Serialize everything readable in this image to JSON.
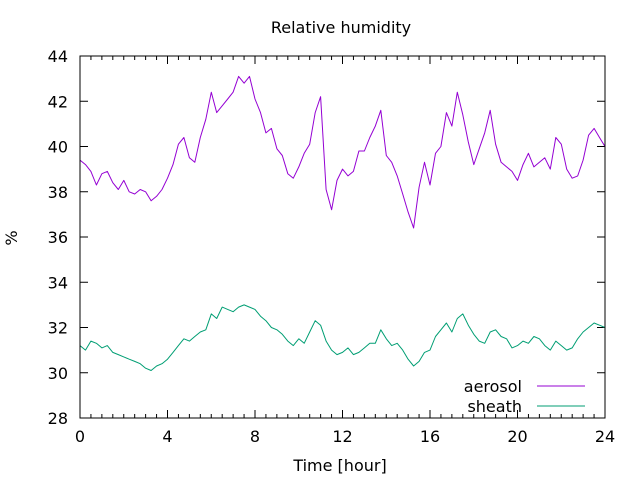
{
  "chart_data": {
    "type": "line",
    "title": "Relative humidity",
    "xlabel": "Time [hour]",
    "ylabel": "%",
    "xlim": [
      0,
      24
    ],
    "ylim": [
      28,
      44
    ],
    "x_ticks": [
      0,
      4,
      8,
      12,
      16,
      20,
      24
    ],
    "y_ticks": [
      28,
      30,
      32,
      34,
      36,
      38,
      40,
      42,
      44
    ],
    "legend_position": "bottom-right",
    "grid": false,
    "series": [
      {
        "name": "aerosol",
        "color": "#9400d3",
        "x": [
          0,
          0.25,
          0.5,
          0.75,
          1,
          1.25,
          1.5,
          1.75,
          2,
          2.25,
          2.5,
          2.75,
          3,
          3.25,
          3.5,
          3.75,
          4,
          4.25,
          4.5,
          4.75,
          5,
          5.25,
          5.5,
          5.75,
          6,
          6.25,
          6.5,
          6.75,
          7,
          7.25,
          7.5,
          7.75,
          8,
          8.25,
          8.5,
          8.75,
          9,
          9.25,
          9.5,
          9.75,
          10,
          10.25,
          10.5,
          10.75,
          11,
          11.25,
          11.5,
          11.75,
          12,
          12.25,
          12.5,
          12.75,
          13,
          13.25,
          13.5,
          13.75,
          14,
          14.25,
          14.5,
          14.75,
          15,
          15.25,
          15.5,
          15.75,
          16,
          16.25,
          16.5,
          16.75,
          17,
          17.25,
          17.5,
          17.75,
          18,
          18.25,
          18.5,
          18.75,
          19,
          19.25,
          19.5,
          19.75,
          20,
          20.25,
          20.5,
          20.75,
          21,
          21.25,
          21.5,
          21.75,
          22,
          22.25,
          22.5,
          22.75,
          23,
          23.25,
          23.5,
          23.75,
          24
        ],
        "values": [
          39.4,
          39.2,
          38.9,
          38.3,
          38.8,
          38.9,
          38.4,
          38.1,
          38.5,
          38.0,
          37.9,
          38.1,
          38.0,
          37.6,
          37.8,
          38.1,
          38.6,
          39.2,
          40.1,
          40.4,
          39.5,
          39.3,
          40.4,
          41.2,
          42.4,
          41.5,
          41.8,
          42.1,
          42.4,
          43.1,
          42.8,
          43.1,
          42.1,
          41.5,
          40.6,
          40.8,
          39.9,
          39.6,
          38.8,
          38.6,
          39.1,
          39.7,
          40.1,
          41.5,
          42.2,
          38.1,
          37.2,
          38.5,
          39.0,
          38.7,
          38.9,
          39.8,
          39.8,
          40.4,
          40.9,
          41.6,
          39.6,
          39.3,
          38.7,
          37.9,
          37.1,
          36.4,
          38.2,
          39.3,
          38.3,
          39.7,
          40.0,
          41.5,
          40.9,
          42.4,
          41.4,
          40.2,
          39.2,
          39.9,
          40.6,
          41.6,
          40.1,
          39.3,
          39.1,
          38.9,
          38.5,
          39.2,
          39.7,
          39.1,
          39.3,
          39.5,
          39.0,
          40.4,
          40.1,
          39.0,
          38.6,
          38.7,
          39.4,
          40.5,
          40.8,
          40.4,
          40.0
        ]
      },
      {
        "name": "sheath",
        "color": "#009e73",
        "x": [
          0,
          0.25,
          0.5,
          0.75,
          1,
          1.25,
          1.5,
          1.75,
          2,
          2.25,
          2.5,
          2.75,
          3,
          3.25,
          3.5,
          3.75,
          4,
          4.25,
          4.5,
          4.75,
          5,
          5.25,
          5.5,
          5.75,
          6,
          6.25,
          6.5,
          6.75,
          7,
          7.25,
          7.5,
          7.75,
          8,
          8.25,
          8.5,
          8.75,
          9,
          9.25,
          9.5,
          9.75,
          10,
          10.25,
          10.5,
          10.75,
          11,
          11.25,
          11.5,
          11.75,
          12,
          12.25,
          12.5,
          12.75,
          13,
          13.25,
          13.5,
          13.75,
          14,
          14.25,
          14.5,
          14.75,
          15,
          15.25,
          15.5,
          15.75,
          16,
          16.25,
          16.5,
          16.75,
          17,
          17.25,
          17.5,
          17.75,
          18,
          18.25,
          18.5,
          18.75,
          19,
          19.25,
          19.5,
          19.75,
          20,
          20.25,
          20.5,
          20.75,
          21,
          21.25,
          21.5,
          21.75,
          22,
          22.25,
          22.5,
          22.75,
          23,
          23.25,
          23.5,
          23.75,
          24
        ],
        "values": [
          31.2,
          31.0,
          31.4,
          31.3,
          31.1,
          31.2,
          30.9,
          30.8,
          30.7,
          30.6,
          30.5,
          30.4,
          30.2,
          30.1,
          30.3,
          30.4,
          30.6,
          30.9,
          31.2,
          31.5,
          31.4,
          31.6,
          31.8,
          31.9,
          32.6,
          32.4,
          32.9,
          32.8,
          32.7,
          32.9,
          33.0,
          32.9,
          32.8,
          32.5,
          32.3,
          32.0,
          31.9,
          31.7,
          31.4,
          31.2,
          31.5,
          31.3,
          31.8,
          32.3,
          32.1,
          31.4,
          31.0,
          30.8,
          30.9,
          31.1,
          30.8,
          30.9,
          31.1,
          31.3,
          31.3,
          31.9,
          31.5,
          31.2,
          31.3,
          31.0,
          30.6,
          30.3,
          30.5,
          30.9,
          31.0,
          31.6,
          31.9,
          32.2,
          31.8,
          32.4,
          32.6,
          32.1,
          31.7,
          31.4,
          31.3,
          31.8,
          31.9,
          31.6,
          31.5,
          31.1,
          31.2,
          31.4,
          31.3,
          31.6,
          31.5,
          31.2,
          31.0,
          31.4,
          31.2,
          31.0,
          31.1,
          31.5,
          31.8,
          32.0,
          32.2,
          32.1,
          32.0
        ]
      }
    ]
  }
}
